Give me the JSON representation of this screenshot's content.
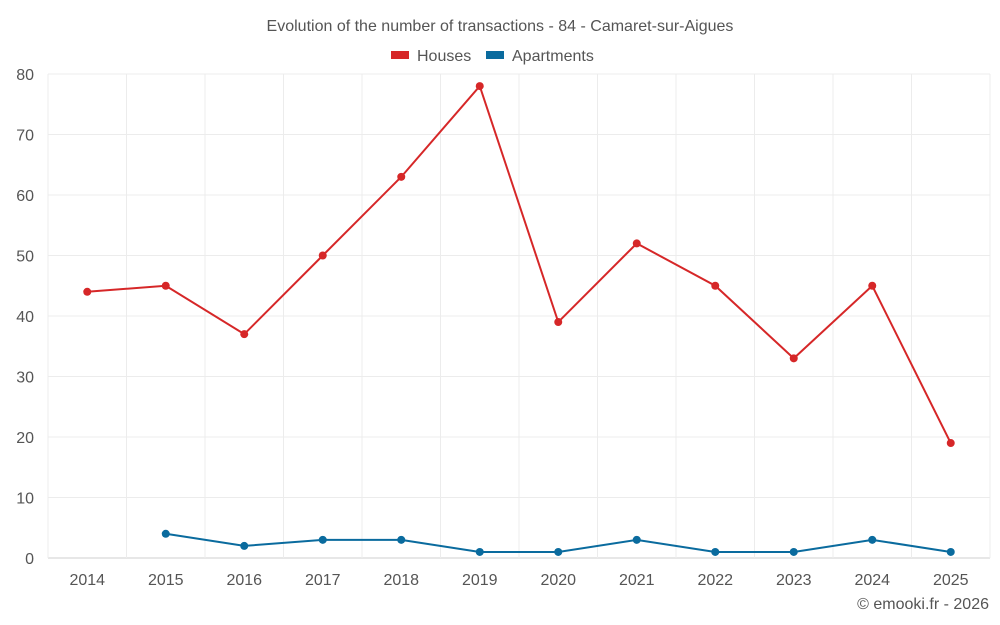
{
  "chart_data": {
    "type": "line",
    "title": "Evolution of the number of transactions - 84 - Camaret-sur-Aigues",
    "categories": [
      "2014",
      "2015",
      "2016",
      "2017",
      "2018",
      "2019",
      "2020",
      "2021",
      "2022",
      "2023",
      "2024",
      "2025"
    ],
    "ylim": [
      0,
      80
    ],
    "yticks": [
      0,
      10,
      20,
      30,
      40,
      50,
      60,
      70,
      80
    ],
    "grid": true,
    "legend_position": "top-center",
    "series": [
      {
        "name": "Houses",
        "color": "#d62728",
        "values": [
          44,
          45,
          37,
          50,
          63,
          78,
          39,
          52,
          45,
          33,
          45,
          19
        ]
      },
      {
        "name": "Apartments",
        "color": "#0a6b9e",
        "values": [
          null,
          4,
          2,
          3,
          3,
          1,
          1,
          3,
          1,
          1,
          3,
          1
        ]
      }
    ]
  },
  "credit": "© emooki.fr - 2026"
}
